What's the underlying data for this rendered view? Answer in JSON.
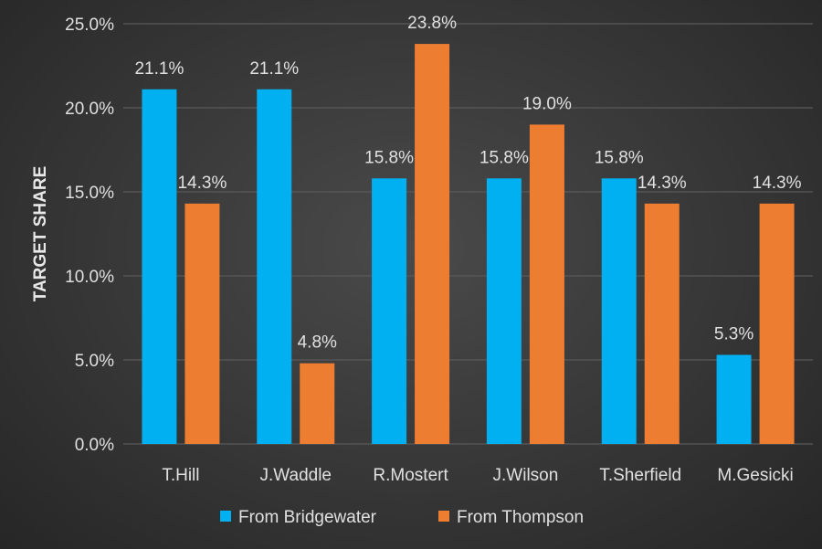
{
  "chart_data": {
    "type": "bar",
    "title": "",
    "xlabel": "",
    "ylabel": "TARGET SHARE",
    "ylim": [
      0,
      25
    ],
    "yticks": [
      "0.0%",
      "5.0%",
      "10.0%",
      "15.0%",
      "20.0%",
      "25.0%"
    ],
    "grid": true,
    "legend_position": "bottom",
    "categories": [
      "T.Hill",
      "J.Waddle",
      "R.Mostert",
      "J.Wilson",
      "T.Sherfield",
      "M.Gesicki"
    ],
    "series": [
      {
        "name": "From Bridgewater",
        "color": "#00b0f0",
        "values": [
          21.1,
          21.1,
          15.8,
          15.8,
          15.8,
          5.3
        ],
        "labels": [
          "21.1%",
          "21.1%",
          "15.8%",
          "15.8%",
          "15.8%",
          "5.3%"
        ]
      },
      {
        "name": "From Thompson",
        "color": "#ed7d31",
        "values": [
          14.3,
          4.8,
          23.8,
          19.0,
          14.3,
          14.3
        ],
        "labels": [
          "14.3%",
          "4.8%",
          "23.8%",
          "19.0%",
          "14.3%",
          "14.3%"
        ]
      }
    ]
  }
}
